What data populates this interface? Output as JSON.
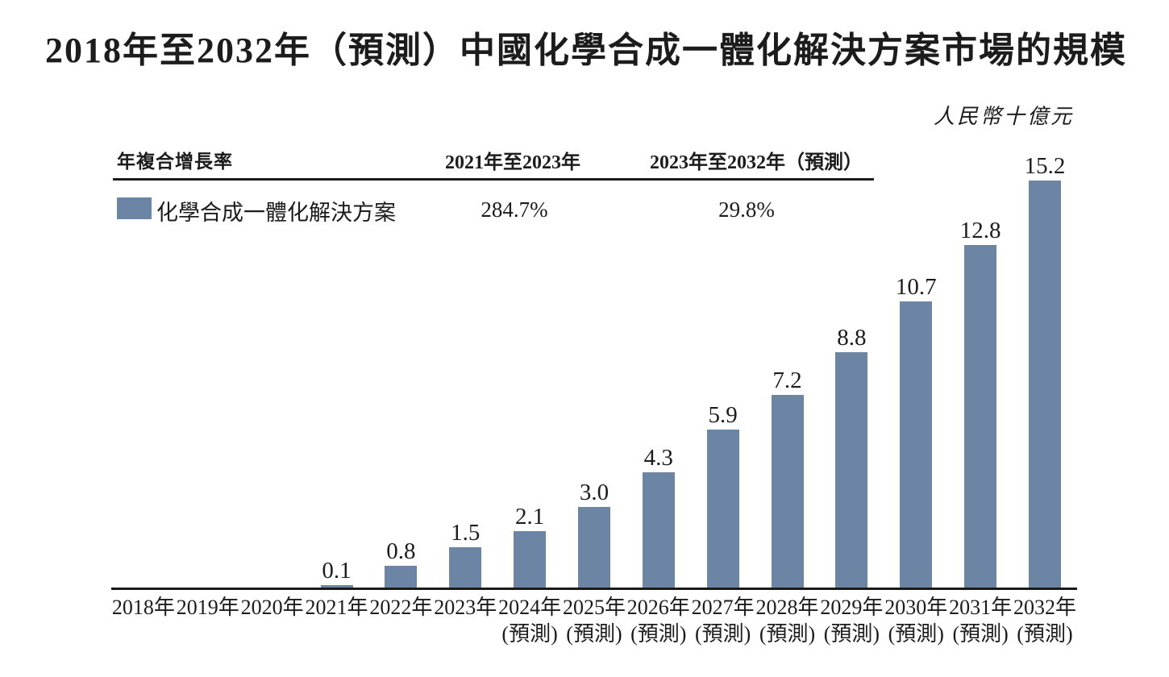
{
  "chart_data": {
    "type": "bar",
    "title": "2018年至2032年（預測）中國化學合成一體化解決方案市場的規模",
    "unit_label": "人民幣十億元",
    "cagr_header": "年複合增長率",
    "cagr": [
      {
        "period": "2021年至2023年",
        "value": "284.7%"
      },
      {
        "period": "2023年至2032年（預測）",
        "value": "29.8%"
      }
    ],
    "categories": [
      "2018年",
      "2019年",
      "2020年",
      "2021年",
      "2022年",
      "2023年",
      "2024年",
      "2025年",
      "2026年",
      "2027年",
      "2028年",
      "2029年",
      "2030年",
      "2031年",
      "2032年"
    ],
    "forecast_note": "(預測)",
    "forecast_start_index": 6,
    "series": [
      {
        "name": "化學合成一體化解決方案",
        "values": [
          null,
          null,
          null,
          0.1,
          0.8,
          1.5,
          2.1,
          3.0,
          4.3,
          5.9,
          7.2,
          8.8,
          10.7,
          12.8,
          15.2
        ],
        "value_labels": [
          "",
          "",
          "",
          "0.1",
          "0.8",
          "1.5",
          "2.1",
          "3.0",
          "4.3",
          "5.9",
          "7.2",
          "8.8",
          "10.7",
          "12.8",
          "15.2"
        ]
      }
    ],
    "bar_color": "#6C85A4",
    "axis_color": "#1a1a1a",
    "ylim": [
      0,
      16
    ],
    "grid": false,
    "legend_position": "top-left"
  }
}
